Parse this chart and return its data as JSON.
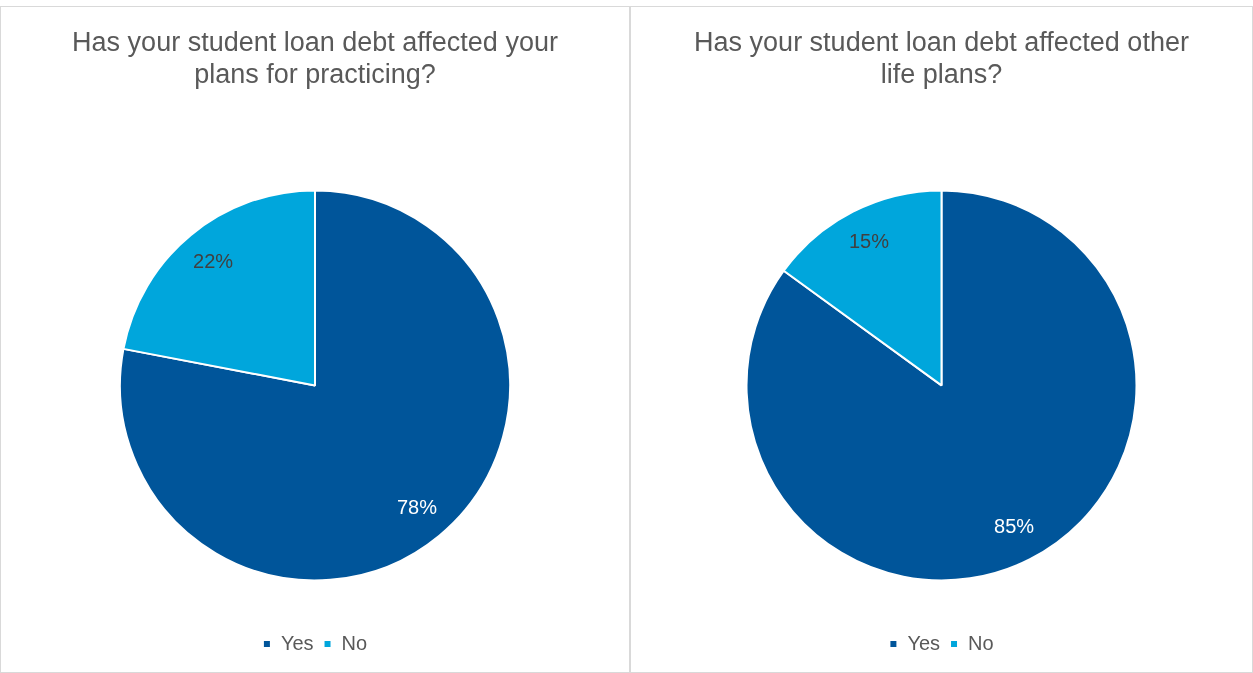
{
  "chart_data": [
    {
      "type": "pie",
      "title": "Has your student loan debt affected your plans for practicing?",
      "categories": [
        "Yes",
        "No"
      ],
      "values": [
        78,
        22
      ],
      "colors": [
        "#00559a",
        "#00a6dc"
      ],
      "value_labels": [
        "78%",
        "22%"
      ],
      "legend": "bottom"
    },
    {
      "type": "pie",
      "title": "Has your student loan debt affected other life plans?",
      "categories": [
        "Yes",
        "No"
      ],
      "values": [
        85,
        15
      ],
      "colors": [
        "#00559a",
        "#00a6dc"
      ],
      "value_labels": [
        "85%",
        "15%"
      ],
      "legend": "bottom"
    }
  ]
}
